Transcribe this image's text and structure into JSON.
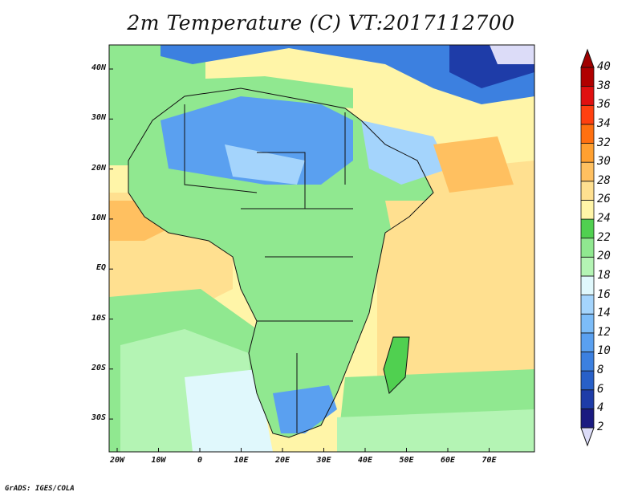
{
  "title": "2m Temperature (C) VT:2017112700",
  "footer": "GrADS: IGES/COLA",
  "chart_data": {
    "type": "heatmap",
    "title": "2m Temperature (C) VT:2017112700",
    "lon_ticks": [
      "20W",
      "10W",
      "0",
      "10E",
      "20E",
      "30E",
      "40E",
      "50E",
      "60E",
      "70E"
    ],
    "lat_ticks": [
      "40N",
      "30N",
      "20N",
      "10N",
      "EQ",
      "10S",
      "20S",
      "30S"
    ],
    "lon_range": [
      -22,
      80
    ],
    "lat_range": [
      -36,
      44
    ],
    "colorbar": {
      "labels": [
        "2",
        "4",
        "6",
        "8",
        "10",
        "12",
        "14",
        "16",
        "18",
        "20",
        "22",
        "24",
        "26",
        "28",
        "30",
        "32",
        "34",
        "36",
        "38",
        "40"
      ],
      "colors": [
        "#dcdcf8",
        "#1a1a80",
        "#1e3ca8",
        "#2860c8",
        "#3c80e0",
        "#5aa0f0",
        "#7cbcf8",
        "#a4d4fc",
        "#e0f8fc",
        "#b4f4b4",
        "#90e890",
        "#50d050",
        "#fff5a8",
        "#ffe090",
        "#ffc060",
        "#ffa030",
        "#ff7010",
        "#ff4010",
        "#e01010",
        "#b00000",
        "#a00000"
      ]
    }
  }
}
